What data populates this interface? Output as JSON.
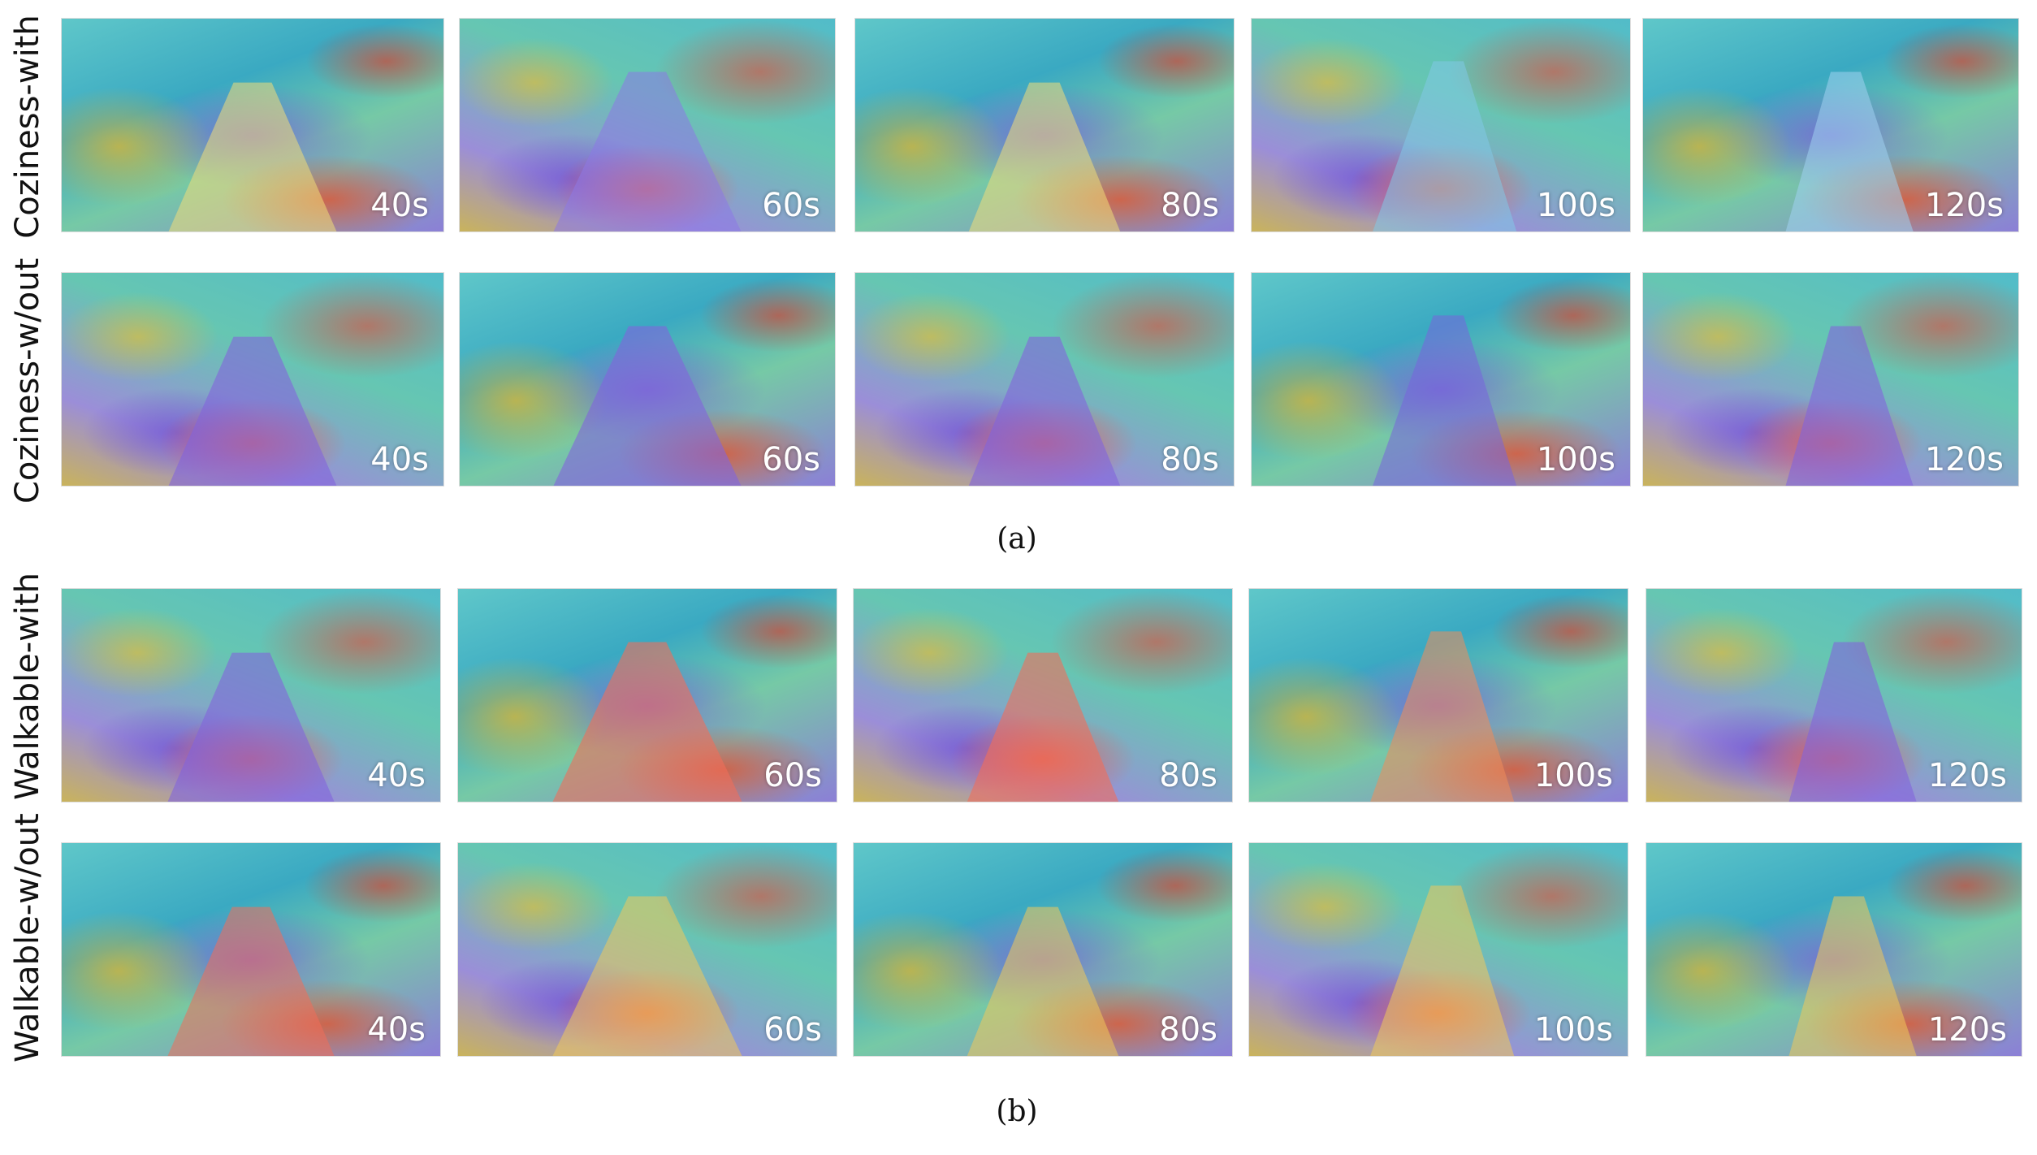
{
  "section_a": {
    "caption": "(a)",
    "rows": [
      {
        "label": "Coziness-with",
        "times": [
          "40s",
          "60s",
          "80s",
          "100s",
          "120s"
        ]
      },
      {
        "label": "Coziness-w/out",
        "times": [
          "40s",
          "60s",
          "80s",
          "100s",
          "120s"
        ]
      }
    ]
  },
  "section_b": {
    "caption": "(b)",
    "rows": [
      {
        "label": "Walkable-with",
        "times": [
          "40s",
          "60s",
          "80s",
          "100s",
          "120s"
        ]
      },
      {
        "label": "Walkable-w/out",
        "times": [
          "40s",
          "60s",
          "80s",
          "100s",
          "120s"
        ]
      }
    ]
  }
}
